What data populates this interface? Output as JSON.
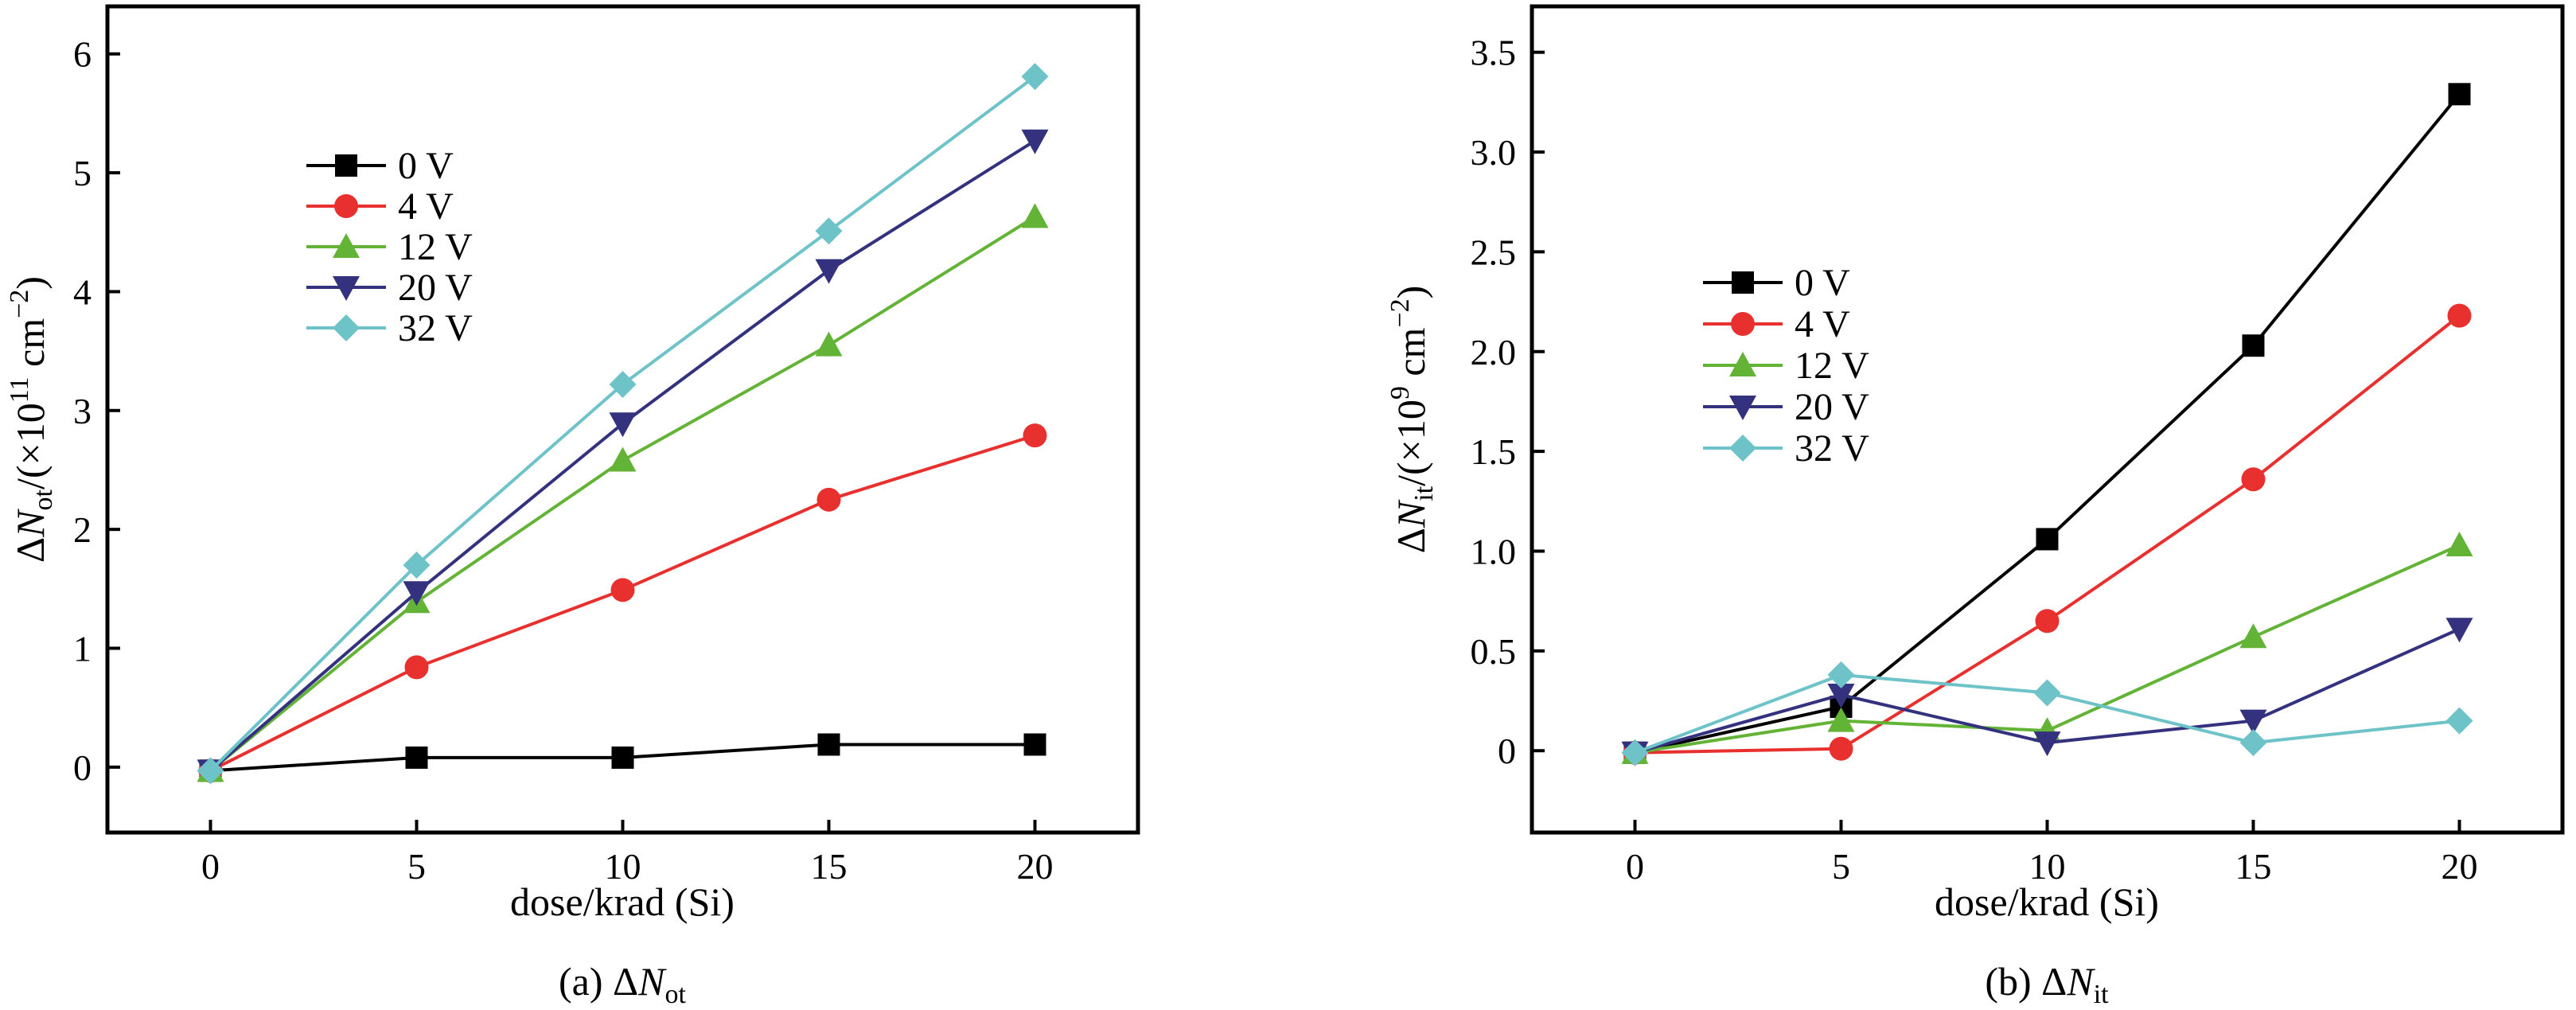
{
  "chart_data": [
    {
      "type": "line",
      "panel": "a",
      "caption": {
        "prefix": "(a) Δ",
        "symbol": "N",
        "subscript": "ot"
      },
      "xlabel": "dose/krad (Si)",
      "ylabel": {
        "prefix": "Δ",
        "symbol": "N",
        "subscript": "ot",
        "mid": "/(×10",
        "exp": "11",
        "unit": " cm",
        "unit_exp": "−2",
        "suffix": ")"
      },
      "x": [
        0,
        5,
        10,
        15,
        20
      ],
      "xticks": [
        "0",
        "5",
        "10",
        "15",
        "20"
      ],
      "xlim": [
        -2.5,
        22.5
      ],
      "yticks": [
        "0",
        "1",
        "2",
        "3",
        "4",
        "5",
        "6"
      ],
      "ylim": [
        -0.55,
        6.4
      ],
      "legend_position": "upper-left",
      "series": [
        {
          "name": "0 V",
          "color": "#000000",
          "marker": "square",
          "values": [
            -0.03,
            0.08,
            0.08,
            0.19,
            0.19
          ]
        },
        {
          "name": "4 V",
          "color": "#e8312f",
          "marker": "circle",
          "values": [
            -0.03,
            0.84,
            1.49,
            2.25,
            2.79
          ]
        },
        {
          "name": "12 V",
          "color": "#63b337",
          "marker": "triangle-up",
          "values": [
            -0.03,
            1.39,
            2.58,
            3.55,
            4.63
          ]
        },
        {
          "name": "20 V",
          "color": "#34317f",
          "marker": "triangle-down",
          "values": [
            -0.03,
            1.47,
            2.89,
            4.18,
            5.27
          ]
        },
        {
          "name": "32 V",
          "color": "#6ec3c9",
          "marker": "diamond",
          "values": [
            -0.03,
            1.7,
            3.22,
            4.51,
            5.81
          ]
        }
      ]
    },
    {
      "type": "line",
      "panel": "b",
      "caption": {
        "prefix": "(b) Δ",
        "symbol": "N",
        "subscript": "it"
      },
      "xlabel": "dose/krad (Si)",
      "ylabel": {
        "prefix": "Δ",
        "symbol": "N",
        "subscript": "it",
        "mid": "/(×10",
        "exp": "9",
        "unit": " cm",
        "unit_exp": "−2",
        "suffix": ")"
      },
      "x": [
        0,
        5,
        10,
        15,
        20
      ],
      "xticks": [
        "0",
        "5",
        "10",
        "15",
        "20"
      ],
      "xlim": [
        -2.5,
        22.5
      ],
      "yticks": [
        "0",
        "0.5",
        "1.0",
        "1.5",
        "2.0",
        "2.5",
        "3.0",
        "3.5"
      ],
      "ylim": [
        -0.41,
        3.73
      ],
      "legend_position": "middle-left",
      "series": [
        {
          "name": "0 V",
          "color": "#000000",
          "marker": "square",
          "values": [
            -0.01,
            0.22,
            1.06,
            2.03,
            3.29
          ]
        },
        {
          "name": "4 V",
          "color": "#e8312f",
          "marker": "circle",
          "values": [
            -0.01,
            0.01,
            0.65,
            1.36,
            2.18
          ]
        },
        {
          "name": "12 V",
          "color": "#63b337",
          "marker": "triangle-up",
          "values": [
            -0.01,
            0.15,
            0.1,
            0.57,
            1.03
          ]
        },
        {
          "name": "20 V",
          "color": "#34317f",
          "marker": "triangle-down",
          "values": [
            -0.01,
            0.28,
            0.04,
            0.15,
            0.61
          ]
        },
        {
          "name": "32 V",
          "color": "#6ec3c9",
          "marker": "diamond",
          "values": [
            -0.01,
            0.38,
            0.29,
            0.04,
            0.15
          ]
        }
      ]
    }
  ]
}
